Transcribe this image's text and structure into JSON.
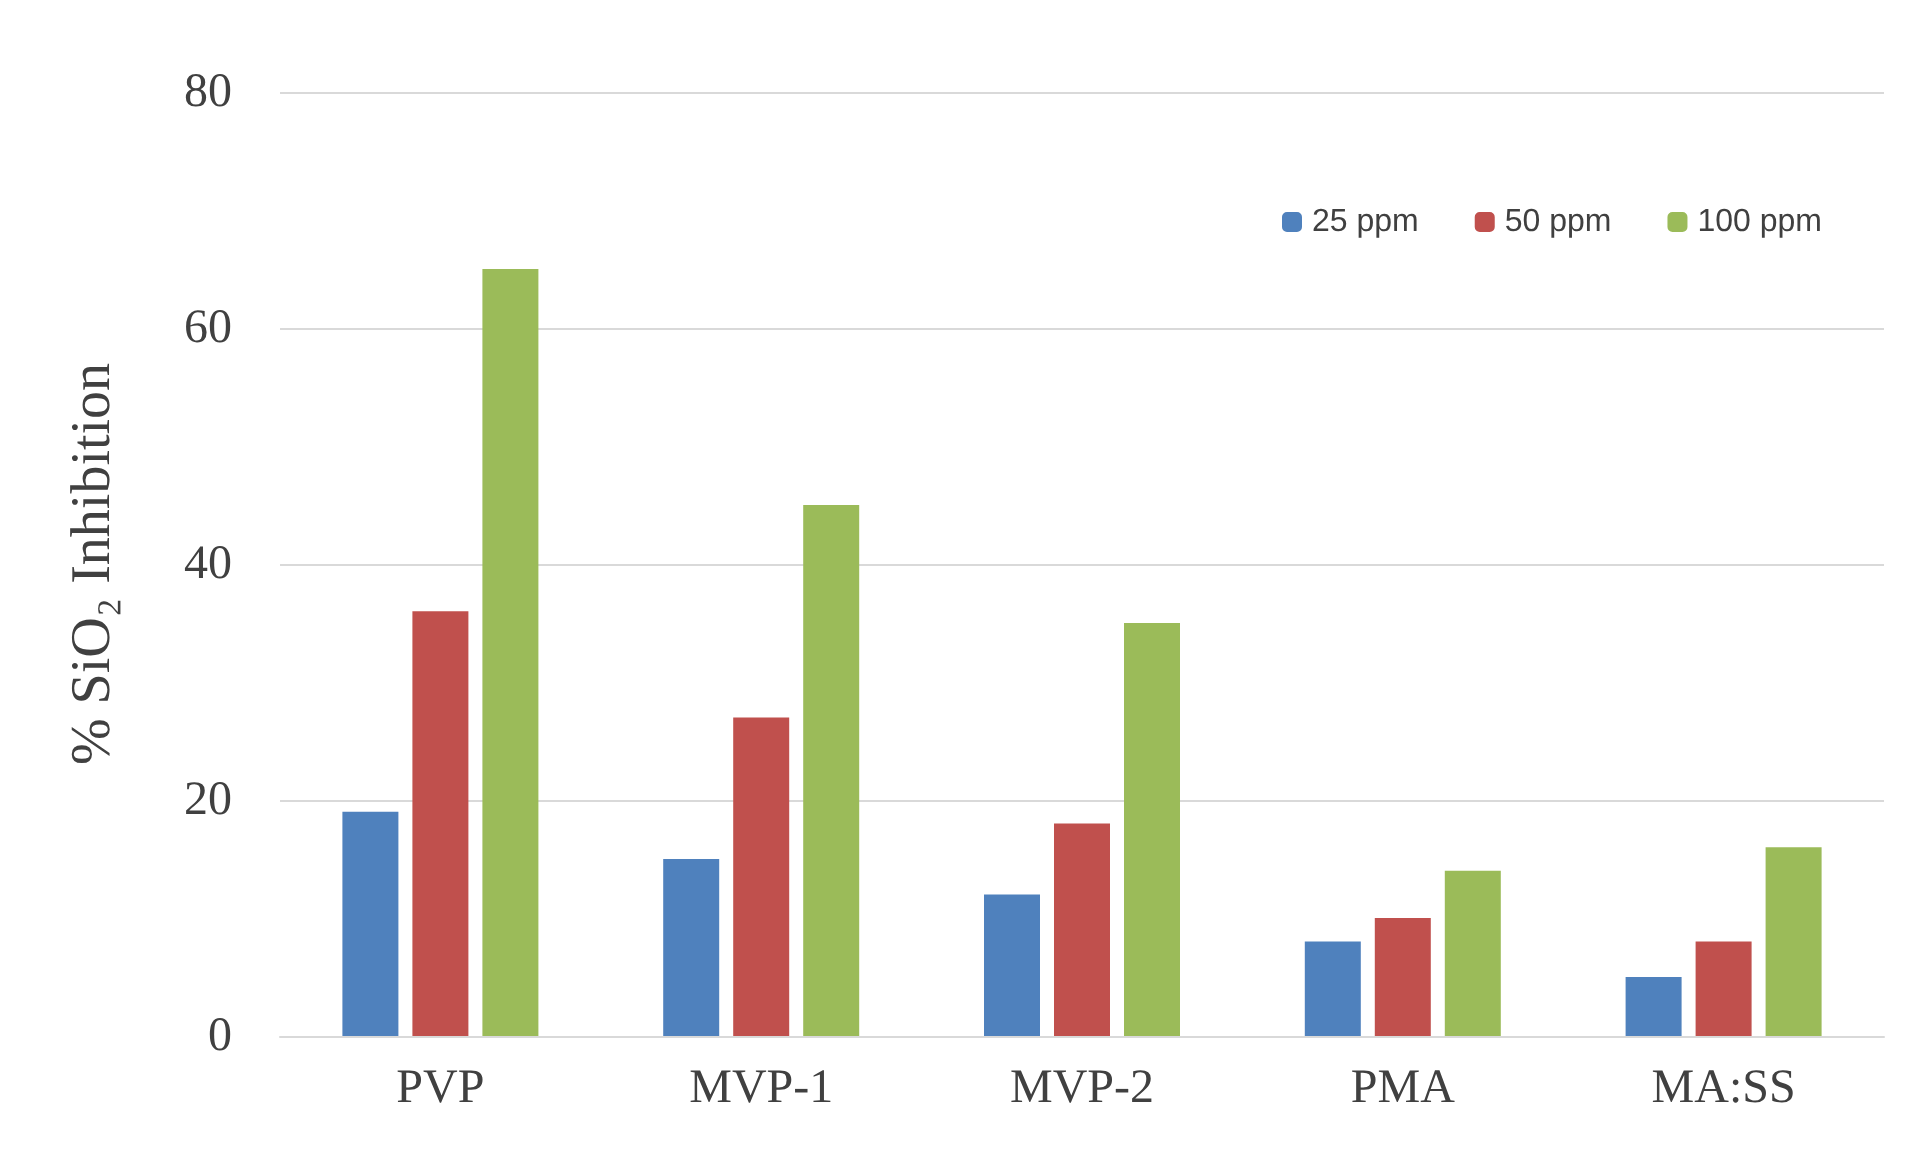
{
  "chart_data": {
    "type": "bar",
    "ylabel": "% SiO₂ Inhibition",
    "categories": [
      "PVP",
      "MVP-1",
      "MVP-2",
      "PMA",
      "MA:SS"
    ],
    "series": [
      {
        "name": "25 ppm",
        "color": "#4f81bd",
        "values": [
          19,
          15,
          12,
          8,
          5
        ]
      },
      {
        "name": "50 ppm",
        "color": "#c0504d",
        "values": [
          36,
          27,
          18,
          10,
          8
        ]
      },
      {
        "name": "100 ppm",
        "color": "#9bbb59",
        "values": [
          65,
          45,
          35,
          14,
          16
        ]
      }
    ],
    "ylim": [
      0,
      80
    ],
    "yticks": [
      0,
      20,
      40,
      60,
      80
    ],
    "grid": "y",
    "legend": "top right"
  }
}
